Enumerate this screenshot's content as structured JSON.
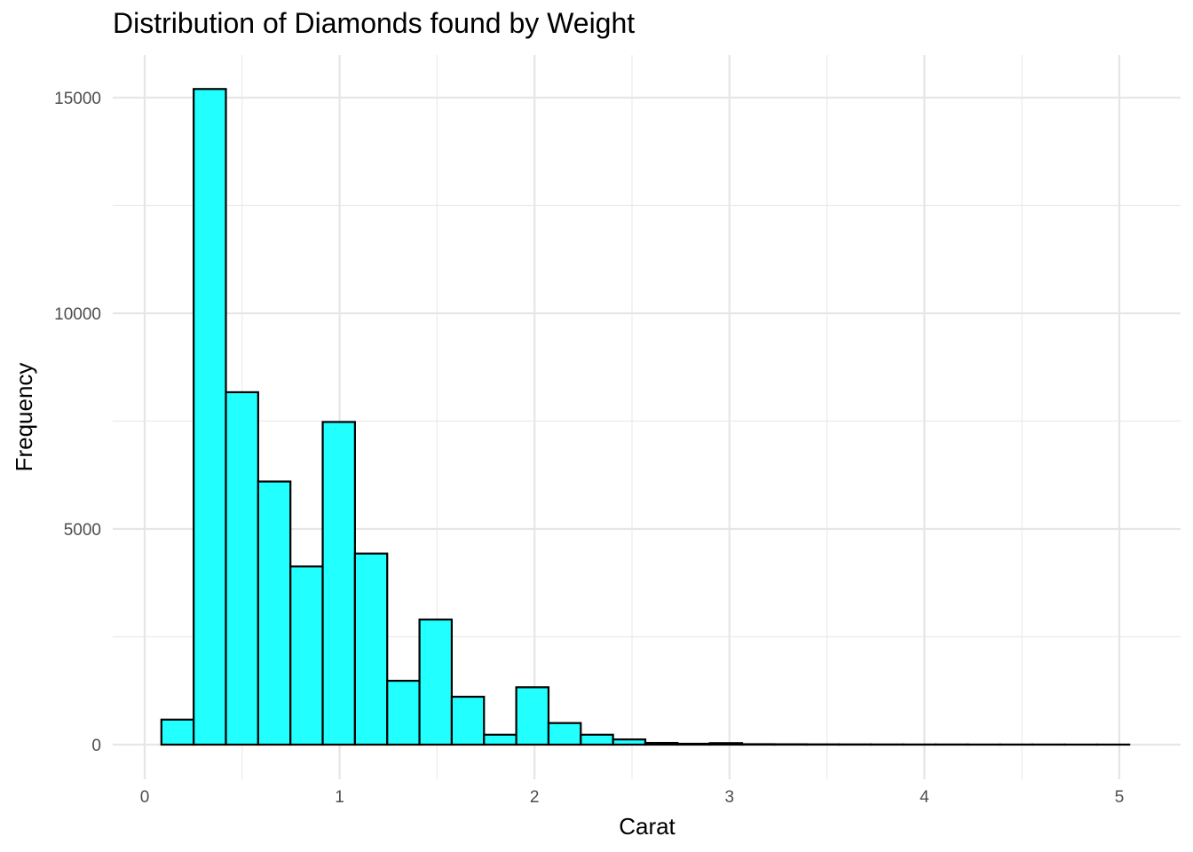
{
  "chart_data": {
    "type": "bar",
    "title": "Distribution of Diamonds found by Weight",
    "xlabel": "Carat",
    "ylabel": "Frequency",
    "xlim": [
      0,
      5.1
    ],
    "ylim": [
      0,
      15500
    ],
    "x_ticks": [
      0,
      1,
      2,
      3,
      4,
      5
    ],
    "y_ticks": [
      0,
      5000,
      10000,
      15000
    ],
    "grid": true,
    "legend": "none",
    "fill_color": "#22ffff",
    "edge_color": "#000000",
    "bin_width": 0.1655,
    "bin_start": 0.0857,
    "counts": [
      580,
      15200,
      8170,
      6100,
      4130,
      7480,
      4430,
      1480,
      2900,
      1110,
      230,
      1330,
      500,
      230,
      120,
      40,
      20,
      35,
      10,
      8,
      6,
      5,
      4,
      3,
      3,
      2,
      2,
      2,
      1,
      1
    ]
  }
}
